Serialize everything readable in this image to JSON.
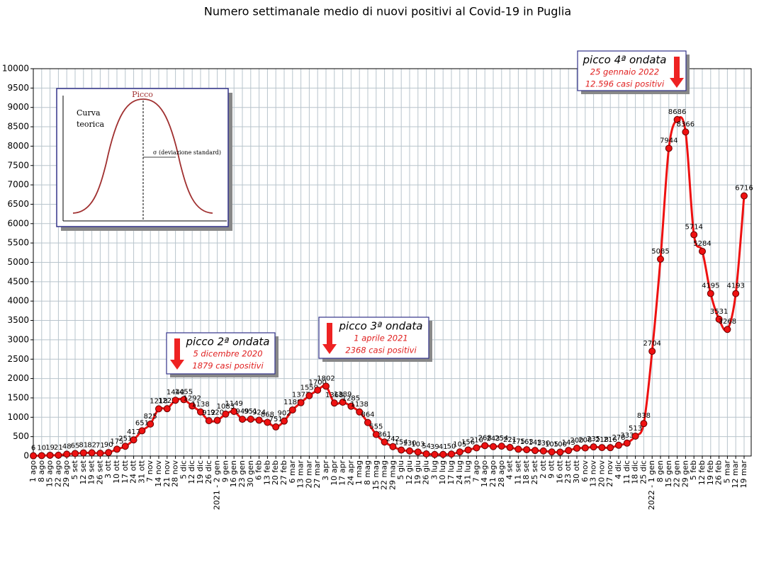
{
  "chart_data": {
    "type": "line",
    "title": "Numero settimanale medio di nuovi positivi al Covid-19 in Puglia",
    "categories": [
      "1 ago",
      "8 ago",
      "15 ago",
      "22 ago",
      "29 ago",
      "5 set",
      "12 set",
      "19 set",
      "26 set",
      "3 ott",
      "10 ott",
      "17 ott",
      "24 ott",
      "31 ott",
      "7 nov",
      "14 nov",
      "21 nov",
      "28 nov",
      "5 dic",
      "12 dic",
      "19 dic",
      "26 dic",
      "2021 - 2 gen",
      "9 gen",
      "16 gen",
      "23 gen",
      "30 gen",
      "6 feb",
      "13 feb",
      "20 feb",
      "27 feb",
      "6 mar",
      "13 mar",
      "20 mar",
      "27 mar",
      "3 apr",
      "10 apr",
      "17 apr",
      "24 apr",
      "1 mag",
      "8 mag",
      "15 mag",
      "22 mag",
      "29 mag",
      "5 giu",
      "12 giu",
      "19 giu",
      "26 giu",
      "3 lug",
      "10 lug",
      "17 lug",
      "24 lug",
      "31 lug",
      "7 ago",
      "14 ago",
      "21 ago",
      "28 ago",
      "4 set",
      "11 set",
      "18 set",
      "25 set",
      "2 ott",
      "9 ott",
      "16 ott",
      "23 ott",
      "30 ott",
      "6 nov",
      "13 nov",
      "20 nov",
      "27 nov",
      "4 dic",
      "11 dic",
      "18 dic",
      "25 dic",
      "2022 - 1 gen",
      "8 gen",
      "15 gen",
      "22 gen",
      "29 gen",
      "5 feb",
      "12 feb",
      "19 feb",
      "26 feb",
      "5 mar",
      "12 mar",
      "19 mar"
    ],
    "series": [
      {
        "name": "Nuovi positivi",
        "color": "#ee1111",
        "values": [
          6,
          10,
          19,
          21,
          48,
          65,
          81,
          82,
          71,
          90,
          175,
          251,
          417,
          651,
          825,
          1218,
          1222,
          1440,
          1455,
          1292,
          1138,
          912,
          920,
          1083,
          1149,
          949,
          951,
          924,
          868,
          751,
          902,
          1189,
          1377,
          1559,
          1700,
          1802,
          1368,
          1389,
          1285,
          1138,
          864,
          555,
          361,
          242,
          154,
          130,
          103,
          54,
          39,
          41,
          50,
          105,
          156,
          210,
          268,
          243,
          254,
          221,
          175,
          163,
          143,
          130,
          105,
          100,
          143,
          200,
          208,
          235,
          218,
          216,
          278,
          333,
          513,
          838,
          2704,
          5085,
          7944,
          8686,
          8366,
          5714,
          5284,
          4195,
          3531,
          3268,
          4193,
          6716
        ]
      }
    ],
    "ylim": [
      0,
      10000
    ],
    "yticks": [
      0,
      500,
      1000,
      1500,
      2000,
      2500,
      3000,
      3500,
      4000,
      4500,
      5000,
      5500,
      6000,
      6500,
      7000,
      7500,
      8000,
      8500,
      9000,
      9500,
      10000
    ],
    "grid": true,
    "annotations": [
      {
        "title": "picco 2ª ondata",
        "date": "5 dicembre 2020",
        "cases": "1879 casi positivi"
      },
      {
        "title": "picco 3ª ondata",
        "date": "1 aprile 2021",
        "cases": "2368 casi positivi"
      },
      {
        "title": "picco 4ª ondata",
        "date": "25 gennaio 2022",
        "cases": "12.596 casi positivi"
      }
    ]
  },
  "inset": {
    "peak": "Picco",
    "label_1": "Curva",
    "label_2": "teorica",
    "sigma": "σ  (deviazione standard)"
  }
}
